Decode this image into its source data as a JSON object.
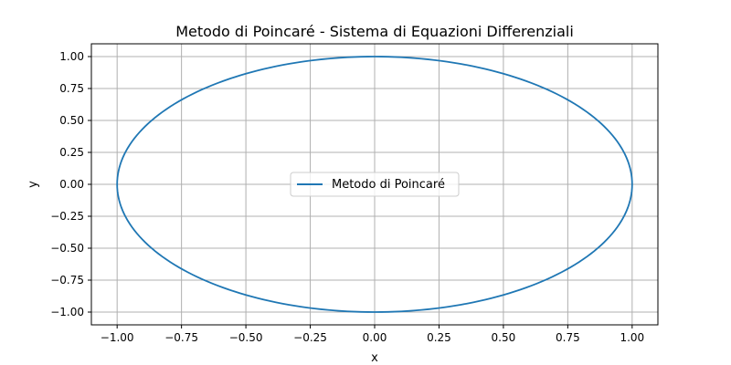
{
  "chart_data": {
    "type": "line",
    "title": "Metodo di Poincaré - Sistema di Equazioni Differenziali",
    "xlabel": "x",
    "ylabel": "y",
    "xlim": [
      -1.1,
      1.1
    ],
    "ylim": [
      -1.1,
      1.1
    ],
    "xticks": [
      -1.0,
      -0.75,
      -0.5,
      -0.25,
      0.0,
      0.25,
      0.5,
      0.75,
      1.0
    ],
    "xtick_labels": [
      "−1.00",
      "−0.75",
      "−0.50",
      "−0.25",
      "0.00",
      "0.25",
      "0.50",
      "0.75",
      "1.00"
    ],
    "yticks": [
      -1.0,
      -0.75,
      -0.5,
      -0.25,
      0.0,
      0.25,
      0.5,
      0.75,
      1.0
    ],
    "ytick_labels": [
      "−1.00",
      "−0.75",
      "−0.50",
      "−0.25",
      "0.00",
      "0.25",
      "0.50",
      "0.75",
      "1.00"
    ],
    "grid": true,
    "legend_position": "center",
    "series": [
      {
        "name": "Metodo di Poincaré",
        "color": "#1f77b4",
        "curve": "closed orbit x = cos(t), y = sin(t)",
        "x": [
          1.0,
          0.966,
          0.866,
          0.707,
          0.5,
          0.259,
          0.0,
          -0.259,
          -0.5,
          -0.707,
          -0.866,
          -0.966,
          -1.0,
          -0.966,
          -0.866,
          -0.707,
          -0.5,
          -0.259,
          0.0,
          0.259,
          0.5,
          0.707,
          0.866,
          0.966,
          1.0
        ],
        "y": [
          0.0,
          0.259,
          0.5,
          0.707,
          0.866,
          0.966,
          1.0,
          0.966,
          0.866,
          0.707,
          0.5,
          0.259,
          0.0,
          -0.259,
          -0.5,
          -0.707,
          -0.866,
          -0.966,
          -1.0,
          -0.966,
          -0.866,
          -0.707,
          -0.5,
          -0.259,
          0.0
        ]
      }
    ]
  },
  "colors": {
    "series": "#1f77b4",
    "grid": "#b0b0b0",
    "axes": "#000000",
    "legend_border": "#cccccc"
  }
}
